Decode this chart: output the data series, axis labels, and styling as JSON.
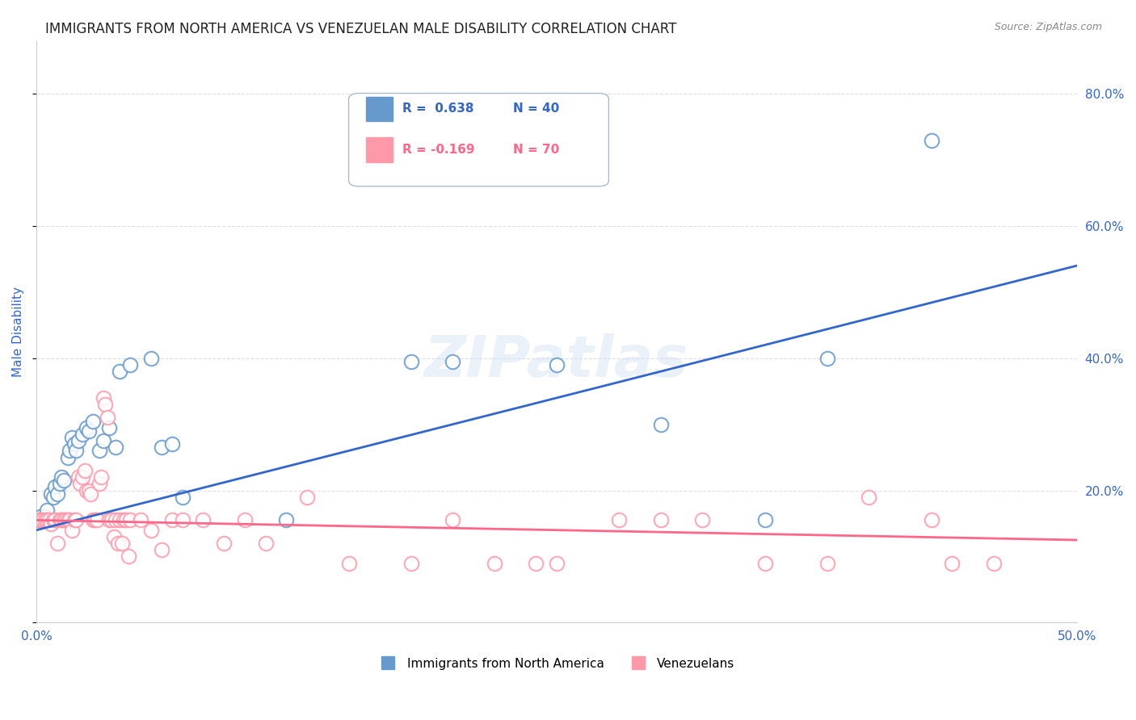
{
  "title": "IMMIGRANTS FROM NORTH AMERICA VS VENEZUELAN MALE DISABILITY CORRELATION CHART",
  "source": "Source: ZipAtlas.com",
  "ylabel": "Male Disability",
  "watermark": "ZIPatlas",
  "legend_blue_r": "R =  0.638",
  "legend_blue_n": "N = 40",
  "legend_pink_r": "R = -0.169",
  "legend_pink_n": "N = 70",
  "blue_color": "#6699CC",
  "pink_color": "#FF99AA",
  "trendline_blue_color": "#3366CC",
  "trendline_pink_color": "#FF6688",
  "blue_scatter": [
    [
      0.001,
      0.155
    ],
    [
      0.002,
      0.16
    ],
    [
      0.003,
      0.155
    ],
    [
      0.004,
      0.16
    ],
    [
      0.005,
      0.17
    ],
    [
      0.007,
      0.195
    ],
    [
      0.008,
      0.19
    ],
    [
      0.009,
      0.205
    ],
    [
      0.01,
      0.195
    ],
    [
      0.011,
      0.21
    ],
    [
      0.012,
      0.22
    ],
    [
      0.013,
      0.215
    ],
    [
      0.015,
      0.25
    ],
    [
      0.016,
      0.26
    ],
    [
      0.017,
      0.28
    ],
    [
      0.018,
      0.27
    ],
    [
      0.019,
      0.26
    ],
    [
      0.02,
      0.275
    ],
    [
      0.022,
      0.285
    ],
    [
      0.024,
      0.295
    ],
    [
      0.025,
      0.29
    ],
    [
      0.027,
      0.305
    ],
    [
      0.03,
      0.26
    ],
    [
      0.032,
      0.275
    ],
    [
      0.035,
      0.295
    ],
    [
      0.038,
      0.265
    ],
    [
      0.04,
      0.38
    ],
    [
      0.045,
      0.39
    ],
    [
      0.055,
      0.4
    ],
    [
      0.06,
      0.265
    ],
    [
      0.065,
      0.27
    ],
    [
      0.07,
      0.19
    ],
    [
      0.12,
      0.155
    ],
    [
      0.18,
      0.395
    ],
    [
      0.2,
      0.395
    ],
    [
      0.25,
      0.39
    ],
    [
      0.3,
      0.3
    ],
    [
      0.35,
      0.155
    ],
    [
      0.38,
      0.4
    ],
    [
      0.43,
      0.73
    ]
  ],
  "pink_scatter": [
    [
      0.001,
      0.155
    ],
    [
      0.002,
      0.155
    ],
    [
      0.003,
      0.155
    ],
    [
      0.004,
      0.155
    ],
    [
      0.005,
      0.155
    ],
    [
      0.006,
      0.155
    ],
    [
      0.007,
      0.15
    ],
    [
      0.008,
      0.155
    ],
    [
      0.009,
      0.155
    ],
    [
      0.01,
      0.12
    ],
    [
      0.011,
      0.155
    ],
    [
      0.012,
      0.155
    ],
    [
      0.013,
      0.155
    ],
    [
      0.014,
      0.155
    ],
    [
      0.015,
      0.155
    ],
    [
      0.016,
      0.155
    ],
    [
      0.017,
      0.14
    ],
    [
      0.018,
      0.155
    ],
    [
      0.019,
      0.155
    ],
    [
      0.02,
      0.22
    ],
    [
      0.021,
      0.21
    ],
    [
      0.022,
      0.22
    ],
    [
      0.023,
      0.23
    ],
    [
      0.024,
      0.2
    ],
    [
      0.025,
      0.2
    ],
    [
      0.026,
      0.195
    ],
    [
      0.027,
      0.155
    ],
    [
      0.028,
      0.155
    ],
    [
      0.029,
      0.155
    ],
    [
      0.03,
      0.21
    ],
    [
      0.031,
      0.22
    ],
    [
      0.032,
      0.34
    ],
    [
      0.033,
      0.33
    ],
    [
      0.034,
      0.31
    ],
    [
      0.035,
      0.155
    ],
    [
      0.036,
      0.155
    ],
    [
      0.037,
      0.13
    ],
    [
      0.038,
      0.155
    ],
    [
      0.039,
      0.12
    ],
    [
      0.04,
      0.155
    ],
    [
      0.041,
      0.12
    ],
    [
      0.042,
      0.155
    ],
    [
      0.043,
      0.155
    ],
    [
      0.044,
      0.1
    ],
    [
      0.045,
      0.155
    ],
    [
      0.05,
      0.155
    ],
    [
      0.055,
      0.14
    ],
    [
      0.06,
      0.11
    ],
    [
      0.065,
      0.155
    ],
    [
      0.07,
      0.155
    ],
    [
      0.08,
      0.155
    ],
    [
      0.09,
      0.12
    ],
    [
      0.1,
      0.155
    ],
    [
      0.11,
      0.12
    ],
    [
      0.13,
      0.19
    ],
    [
      0.15,
      0.09
    ],
    [
      0.18,
      0.09
    ],
    [
      0.2,
      0.155
    ],
    [
      0.22,
      0.09
    ],
    [
      0.24,
      0.09
    ],
    [
      0.25,
      0.09
    ],
    [
      0.28,
      0.155
    ],
    [
      0.3,
      0.155
    ],
    [
      0.32,
      0.155
    ],
    [
      0.35,
      0.09
    ],
    [
      0.38,
      0.09
    ],
    [
      0.4,
      0.19
    ],
    [
      0.43,
      0.155
    ],
    [
      0.44,
      0.09
    ],
    [
      0.46,
      0.09
    ]
  ],
  "blue_trendline": [
    [
      0.0,
      0.14
    ],
    [
      0.5,
      0.54
    ]
  ],
  "pink_trendline": [
    [
      0.0,
      0.155
    ],
    [
      0.5,
      0.125
    ]
  ],
  "xmin": 0.0,
  "xmax": 0.5,
  "ymin": 0.0,
  "ymax": 0.88,
  "background_color": "#FFFFFF",
  "grid_color": "#DDDDEE",
  "axis_label_color": "#3366CC",
  "watermark_color": "#CCDDEE",
  "watermark_alpha": 0.4,
  "legend_bottom_labels": [
    "Immigrants from North America",
    "Venezuelans"
  ]
}
